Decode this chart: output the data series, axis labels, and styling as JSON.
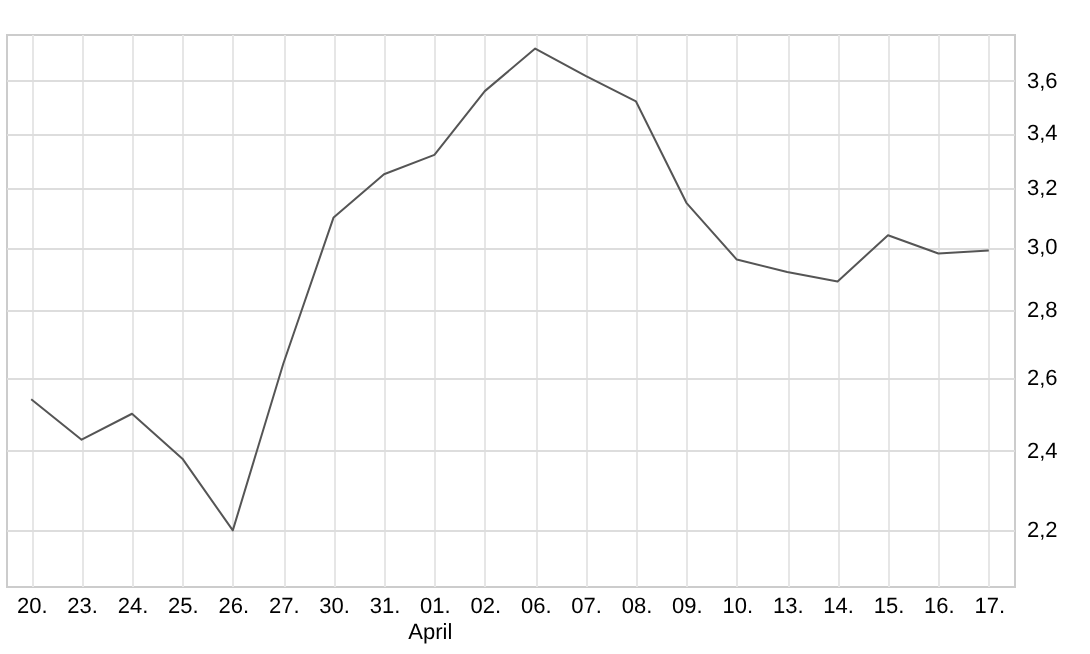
{
  "chart_data": {
    "type": "line",
    "categories": [
      "20.",
      "23.",
      "24.",
      "25.",
      "26.",
      "27.",
      "30.",
      "31.",
      "01.",
      "02.",
      "06.",
      "07.",
      "08.",
      "09.",
      "10.",
      "13.",
      "14.",
      "15.",
      "16.",
      "17."
    ],
    "series": [
      {
        "color": "#555555",
        "values": [
          2.54,
          2.43,
          2.5,
          2.38,
          2.2,
          2.64,
          3.1,
          3.25,
          3.32,
          3.56,
          3.73,
          3.62,
          3.52,
          3.15,
          2.96,
          2.92,
          2.89,
          3.04,
          2.98,
          2.99
        ]
      }
    ],
    "xlabel": "April",
    "ylim": [
      2.07,
      3.79
    ],
    "yticks": [
      {
        "value": 2.2,
        "label": "2,2"
      },
      {
        "value": 2.4,
        "label": "2,4"
      },
      {
        "value": 2.6,
        "label": "2,6"
      },
      {
        "value": 2.8,
        "label": "2,8"
      },
      {
        "value": 3.0,
        "label": "3,0"
      },
      {
        "value": 3.2,
        "label": "3,2"
      },
      {
        "value": 3.4,
        "label": "3,4"
      },
      {
        "value": 3.6,
        "label": "3,6"
      }
    ],
    "log": "y",
    "grid": true,
    "marker": "none",
    "line_style": "solid"
  }
}
